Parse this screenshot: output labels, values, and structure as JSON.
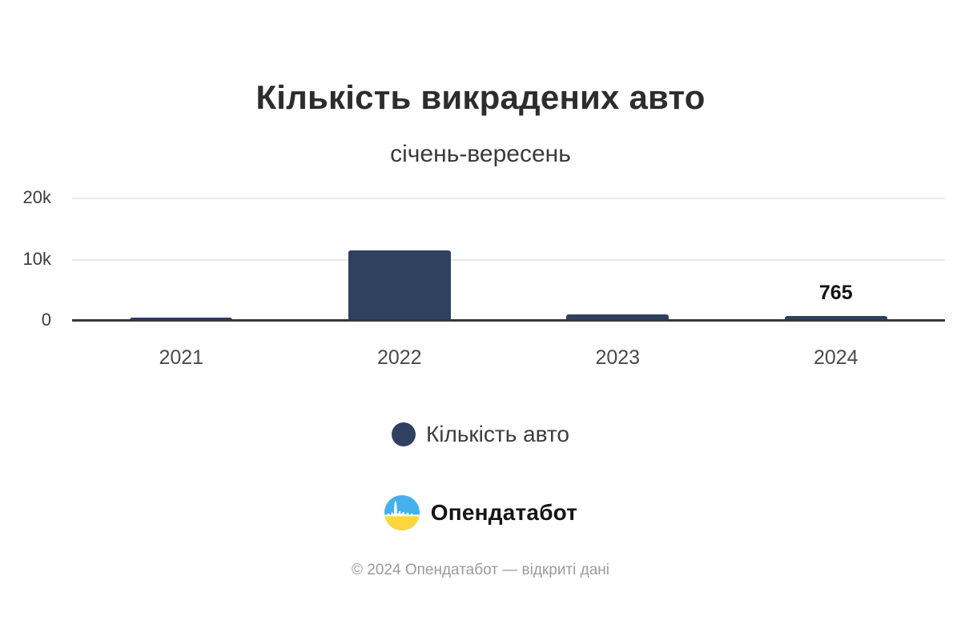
{
  "header": {
    "title": "Кількість викрадених авто",
    "subtitle": "січень-вересень"
  },
  "chart_data": {
    "type": "bar",
    "title": "Кількість викрадених авто",
    "subtitle": "січень-вересень",
    "categories": [
      "2021",
      "2022",
      "2023",
      "2024"
    ],
    "series": [
      {
        "name": "Кількість авто",
        "values": [
          550,
          11500,
          1050,
          765
        ]
      }
    ],
    "value_labels": [
      "",
      "",
      "",
      "765"
    ],
    "ylim": [
      0,
      20000
    ],
    "yticks": [
      "0",
      "10k",
      "20k"
    ],
    "grid": true,
    "legend_position": "bottom",
    "bar_color": "#2f415f"
  },
  "legend": {
    "label": "Кількість авто",
    "marker_color": "#2f415f"
  },
  "branding": {
    "logo_text": "Опендатабот",
    "icon_blue": "#45b1ec",
    "icon_yellow": "#ffd640"
  },
  "footer": {
    "copyright": "© 2024 Опендатабот — відкриті дані"
  }
}
